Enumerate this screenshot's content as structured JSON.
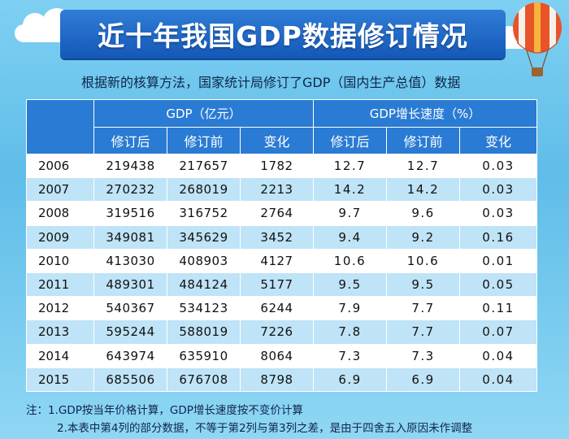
{
  "title": "近十年我国GDP数据修订情况",
  "subtitle": "根据新的核算方法，国家统计局修订了GDP（国内生产总值）数据",
  "table": {
    "group_headers": [
      "GDP（亿元）",
      "GDP增长速度（%）"
    ],
    "sub_headers": [
      "修订后",
      "修订前",
      "变化",
      "修订后",
      "修订前",
      "变化"
    ],
    "rows": [
      [
        "2006",
        "219438",
        "217657",
        "1782",
        "12.7",
        "12.7",
        "0.03"
      ],
      [
        "2007",
        "270232",
        "268019",
        "2213",
        "14.2",
        "14.2",
        "0.03"
      ],
      [
        "2008",
        "319516",
        "316752",
        "2764",
        "9.7",
        "9.6",
        "0.03"
      ],
      [
        "2009",
        "349081",
        "345629",
        "3452",
        "9.4",
        "9.2",
        "0.16"
      ],
      [
        "2010",
        "413030",
        "408903",
        "4127",
        "10.6",
        "10.6",
        "0.01"
      ],
      [
        "2011",
        "489301",
        "484124",
        "5177",
        "9.5",
        "9.5",
        "0.05"
      ],
      [
        "2012",
        "540367",
        "534123",
        "6244",
        "7.9",
        "7.7",
        "0.11"
      ],
      [
        "2013",
        "595244",
        "588019",
        "7226",
        "7.8",
        "7.7",
        "0.07"
      ],
      [
        "2014",
        "643974",
        "635910",
        "8064",
        "7.3",
        "7.3",
        "0.04"
      ],
      [
        "2015",
        "685506",
        "676708",
        "8798",
        "6.9",
        "6.9",
        "0.04"
      ]
    ]
  },
  "notes": [
    "注：1.GDP按当年价格计算，GDP增长速度按不变价计算",
    "2.本表中第4列的部分数据，不等于第2列与第3列之差，是由于四舍五入原因未作调整"
  ],
  "colors": {
    "banner": "#1f6bc8",
    "header": "#2a7bd4",
    "stripe": "#bfe3f7",
    "background": "#6cc6ee"
  },
  "decorations": [
    "cloud-left",
    "cloud-right",
    "hot-air-balloon-icon"
  ]
}
